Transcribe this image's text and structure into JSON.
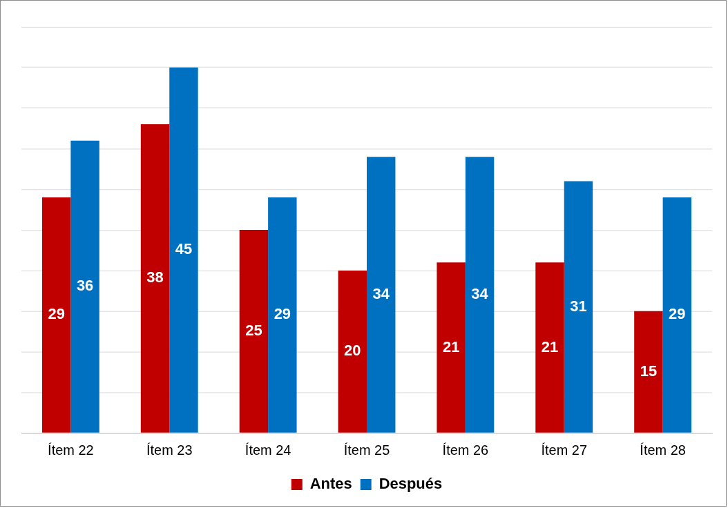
{
  "chart_data": {
    "type": "bar",
    "categories": [
      "Ítem 22",
      "Ítem 23",
      "Ítem 24",
      "Ítem 25",
      "Ítem 26",
      "Ítem 27",
      "Ítem 28"
    ],
    "series": [
      {
        "name": "Antes",
        "color": "#c00000",
        "values": [
          29,
          38,
          25,
          20,
          21,
          21,
          15
        ]
      },
      {
        "name": "Después",
        "color": "#0070c0",
        "values": [
          36,
          45,
          29,
          34,
          34,
          31,
          29
        ]
      }
    ],
    "ylim": [
      0,
      50
    ],
    "yticks": [
      {
        "value": 0,
        "label": null
      },
      {
        "value": 5,
        "label": null
      },
      {
        "value": 10,
        "label": null
      },
      {
        "value": 15,
        "label": null
      },
      {
        "value": 20,
        "label": null
      },
      {
        "value": 25,
        "label": null
      },
      {
        "value": 30,
        "label": null
      },
      {
        "value": 35,
        "label": null
      },
      {
        "value": 40,
        "label": null
      },
      {
        "value": 45,
        "label": null
      },
      {
        "value": 50,
        "label": null
      }
    ],
    "grid": "y",
    "tick_labels": "x",
    "data_labels": true,
    "legend": "bottom"
  }
}
